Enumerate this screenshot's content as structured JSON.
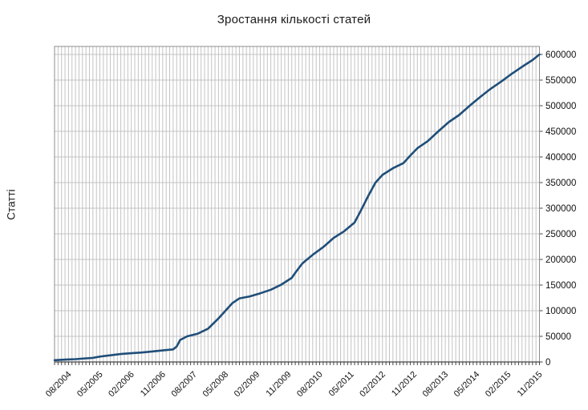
{
  "chart_data": {
    "type": "line",
    "title": "Зростання кількості статей",
    "ylabel": "Статті",
    "legend": "none",
    "grid": {
      "vertical": true,
      "horizontal": true,
      "color": "#C3C3C3"
    },
    "frame_color": "#8C8C8C",
    "axis_color": "#454545",
    "x_axis": {
      "start": "2004-04",
      "end": "2015-11",
      "minor_gridline_interval_months": 1,
      "tick_labels": [
        "08/2004",
        "05/2005",
        "02/2006",
        "11/2006",
        "08/2007",
        "05/2008",
        "02/2009",
        "11/2009",
        "08/2010",
        "05/2011",
        "02/2012",
        "11/2012",
        "08/2013",
        "05/2014",
        "02/2015",
        "11/2015"
      ]
    },
    "y_axis": {
      "min": 0,
      "max": 600000,
      "tick_step": 50000,
      "side": "right",
      "tick_labels": [
        "0",
        "50000",
        "100000",
        "150000",
        "200000",
        "250000",
        "300000",
        "350000",
        "400000",
        "450000",
        "500000",
        "550000",
        "600000"
      ]
    },
    "series": [
      {
        "name": "Статті",
        "color": "#1F4E79",
        "points": [
          [
            "2004-04",
            3500
          ],
          [
            "2004-07",
            4500
          ],
          [
            "2004-10",
            5500
          ],
          [
            "2005-01",
            7000
          ],
          [
            "2005-03",
            8000
          ],
          [
            "2005-05",
            10500
          ],
          [
            "2005-08",
            13000
          ],
          [
            "2005-11",
            15500
          ],
          [
            "2006-02",
            17000
          ],
          [
            "2006-05",
            18500
          ],
          [
            "2006-08",
            20500
          ],
          [
            "2006-11",
            22500
          ],
          [
            "2007-02",
            24500
          ],
          [
            "2007-03",
            30000
          ],
          [
            "2007-04",
            43000
          ],
          [
            "2007-06",
            50000
          ],
          [
            "2007-09",
            55000
          ],
          [
            "2007-12",
            65000
          ],
          [
            "2008-03",
            85000
          ],
          [
            "2008-05",
            100000
          ],
          [
            "2008-07",
            115000
          ],
          [
            "2008-09",
            124000
          ],
          [
            "2008-12",
            128000
          ],
          [
            "2009-03",
            134000
          ],
          [
            "2009-06",
            141000
          ],
          [
            "2009-09",
            151000
          ],
          [
            "2009-12",
            164000
          ],
          [
            "2010-01",
            174000
          ],
          [
            "2010-03",
            192000
          ],
          [
            "2010-06",
            209000
          ],
          [
            "2010-09",
            224000
          ],
          [
            "2010-12",
            242000
          ],
          [
            "2011-03",
            255000
          ],
          [
            "2011-06",
            272000
          ],
          [
            "2011-08",
            298000
          ],
          [
            "2011-10",
            325000
          ],
          [
            "2011-12",
            350000
          ],
          [
            "2012-02",
            365000
          ],
          [
            "2012-05",
            378000
          ],
          [
            "2012-08",
            388000
          ],
          [
            "2012-10",
            403000
          ],
          [
            "2012-12",
            417000
          ],
          [
            "2013-03",
            431000
          ],
          [
            "2013-06",
            450000
          ],
          [
            "2013-09",
            468000
          ],
          [
            "2013-12",
            482000
          ],
          [
            "2014-03",
            500000
          ],
          [
            "2014-06",
            517000
          ],
          [
            "2014-09",
            533000
          ],
          [
            "2014-12",
            547000
          ],
          [
            "2015-03",
            562000
          ],
          [
            "2015-06",
            576000
          ],
          [
            "2015-09",
            589000
          ],
          [
            "2015-11",
            600000
          ]
        ]
      }
    ]
  }
}
